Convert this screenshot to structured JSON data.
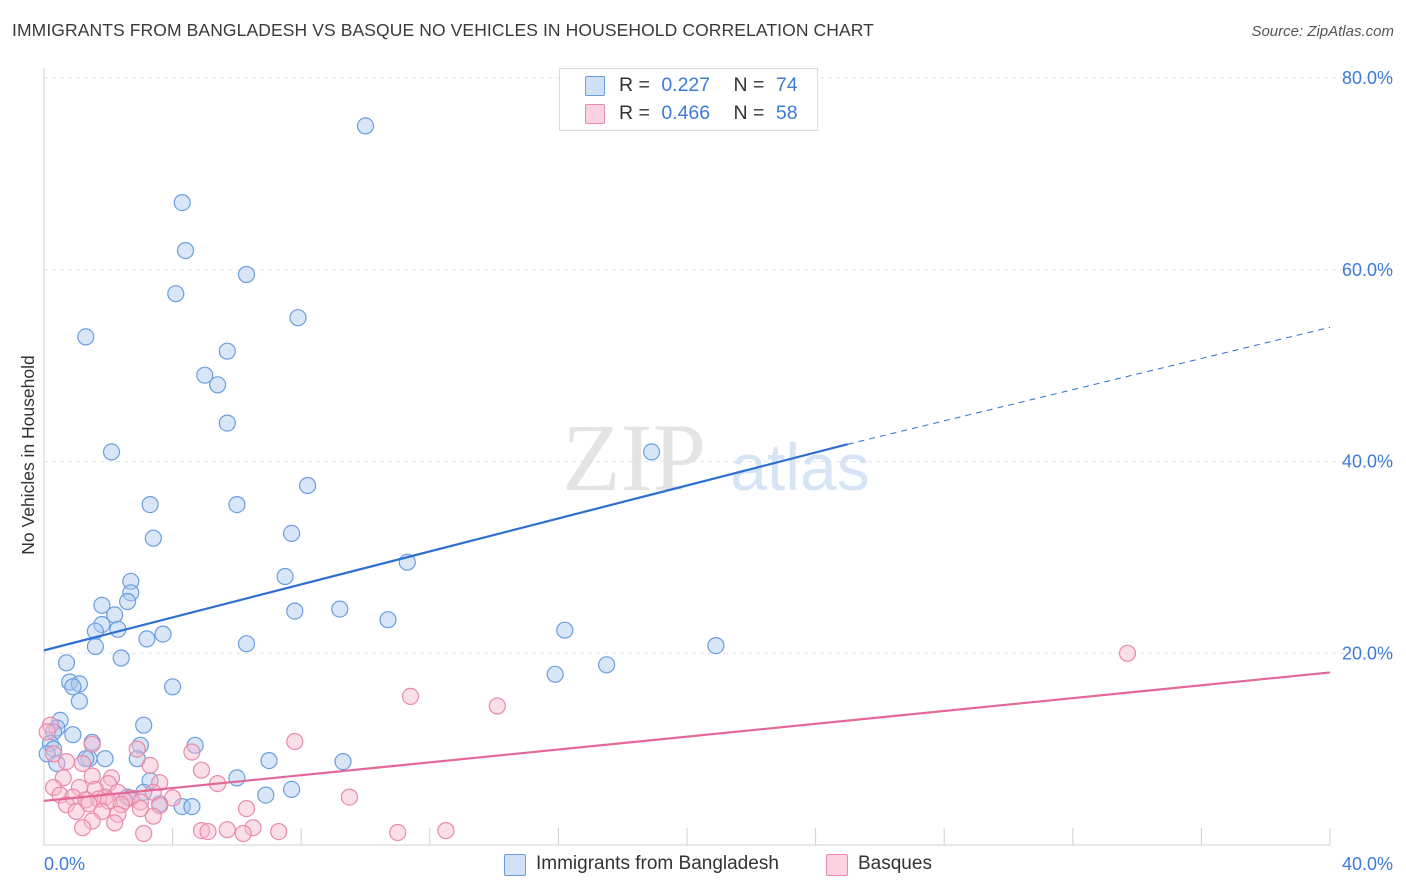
{
  "title": "IMMIGRANTS FROM BANGLADESH VS BASQUE NO VEHICLES IN HOUSEHOLD CORRELATION CHART",
  "source": "Source: ZipAtlas.com",
  "watermark": {
    "zip": "ZIP",
    "atlas": "atlas"
  },
  "legend": {
    "r_label": "R =",
    "n_label": "N =",
    "rows": [
      {
        "r": "0.227",
        "n": "74"
      },
      {
        "r": "0.466",
        "n": "58"
      }
    ]
  },
  "bottom_legend": [
    "Immigrants from Bangladesh",
    "Basques"
  ],
  "colors": {
    "blue_fill": "#a9c8f0",
    "blue_stroke": "#6a9ee0",
    "blue_line": "#2f6fcf",
    "pink_fill": "#f6b8cc",
    "pink_stroke": "#e98aa8",
    "pink_line": "#e2689a",
    "tick_label": "#3d7bd9",
    "grid": "#e4e4e4"
  },
  "chart_data": {
    "type": "scatter",
    "title": "IMMIGRANTS FROM BANGLADESH VS BASQUE NO VEHICLES IN HOUSEHOLD CORRELATION CHART",
    "xlabel": "",
    "ylabel": "No Vehicles in Household",
    "xlim": [
      0,
      40
    ],
    "ylim": [
      0,
      80
    ],
    "x_tick_labels": [
      "0.0%",
      "40.0%"
    ],
    "y_ticks": [
      20,
      40,
      60,
      80
    ],
    "y_tick_labels": [
      "20.0%",
      "40.0%",
      "60.0%",
      "80.0%"
    ],
    "grid": true,
    "legend_position": "top-center",
    "series": [
      {
        "name": "Immigrants from Bangladesh",
        "r": 0.227,
        "n": 74,
        "trend": {
          "x0": 0,
          "y0": 20.3,
          "x1": 25,
          "y1": 41.8,
          "dashed_to_x": 40,
          "dashed_to_y": 54.0
        },
        "points": [
          [
            10.0,
            75.0
          ],
          [
            4.3,
            67.0
          ],
          [
            4.4,
            62.0
          ],
          [
            6.3,
            59.5
          ],
          [
            4.1,
            57.5
          ],
          [
            7.9,
            55.0
          ],
          [
            1.3,
            53.0
          ],
          [
            5.7,
            51.5
          ],
          [
            5.0,
            49.0
          ],
          [
            5.4,
            48.0
          ],
          [
            5.7,
            44.0
          ],
          [
            2.1,
            41.0
          ],
          [
            18.9,
            41.0
          ],
          [
            8.2,
            37.5
          ],
          [
            3.3,
            35.5
          ],
          [
            6.0,
            35.5
          ],
          [
            3.4,
            32.0
          ],
          [
            7.7,
            32.5
          ],
          [
            11.3,
            29.5
          ],
          [
            2.7,
            27.5
          ],
          [
            7.5,
            28.0
          ],
          [
            2.7,
            26.3
          ],
          [
            2.6,
            25.4
          ],
          [
            1.8,
            25.0
          ],
          [
            9.2,
            24.6
          ],
          [
            7.8,
            24.4
          ],
          [
            2.2,
            24.0
          ],
          [
            1.8,
            23.0
          ],
          [
            10.7,
            23.5
          ],
          [
            1.6,
            22.3
          ],
          [
            2.3,
            22.5
          ],
          [
            3.7,
            22.0
          ],
          [
            3.2,
            21.5
          ],
          [
            6.3,
            21.0
          ],
          [
            1.6,
            20.7
          ],
          [
            2.4,
            19.5
          ],
          [
            16.2,
            22.4
          ],
          [
            20.9,
            20.8
          ],
          [
            17.5,
            18.8
          ],
          [
            15.9,
            17.8
          ],
          [
            0.7,
            19.0
          ],
          [
            0.8,
            17.0
          ],
          [
            1.1,
            16.8
          ],
          [
            0.9,
            16.5
          ],
          [
            4.0,
            16.5
          ],
          [
            1.1,
            15.0
          ],
          [
            0.5,
            13.0
          ],
          [
            0.4,
            12.2
          ],
          [
            3.1,
            12.5
          ],
          [
            0.3,
            11.8
          ],
          [
            0.9,
            11.5
          ],
          [
            0.2,
            10.6
          ],
          [
            1.5,
            10.7
          ],
          [
            0.3,
            10.0
          ],
          [
            3.0,
            10.4
          ],
          [
            4.7,
            10.4
          ],
          [
            0.1,
            9.5
          ],
          [
            1.4,
            9.0
          ],
          [
            1.3,
            9.0
          ],
          [
            1.9,
            9.0
          ],
          [
            2.9,
            9.0
          ],
          [
            7.0,
            8.8
          ],
          [
            9.3,
            8.7
          ],
          [
            0.4,
            8.5
          ],
          [
            6.0,
            7.0
          ],
          [
            3.3,
            6.7
          ],
          [
            7.7,
            5.8
          ],
          [
            6.9,
            5.2
          ],
          [
            2.6,
            5.0
          ],
          [
            2.7,
            4.9
          ],
          [
            3.6,
            4.3
          ],
          [
            4.3,
            4.0
          ],
          [
            4.6,
            4.0
          ],
          [
            3.1,
            5.5
          ]
        ]
      },
      {
        "name": "Basques",
        "r": 0.466,
        "n": 58,
        "trend": {
          "x0": 0,
          "y0": 4.6,
          "x1": 40,
          "y1": 18.0
        },
        "points": [
          [
            33.7,
            20.0
          ],
          [
            11.4,
            15.5
          ],
          [
            14.1,
            14.5
          ],
          [
            0.2,
            12.5
          ],
          [
            0.1,
            11.8
          ],
          [
            1.5,
            10.5
          ],
          [
            7.8,
            10.8
          ],
          [
            0.3,
            9.5
          ],
          [
            2.9,
            10.0
          ],
          [
            4.6,
            9.7
          ],
          [
            0.7,
            8.7
          ],
          [
            1.2,
            8.5
          ],
          [
            3.3,
            8.3
          ],
          [
            4.9,
            7.8
          ],
          [
            1.5,
            7.2
          ],
          [
            0.6,
            7.0
          ],
          [
            2.1,
            7.0
          ],
          [
            2.0,
            6.4
          ],
          [
            3.6,
            6.5
          ],
          [
            5.4,
            6.4
          ],
          [
            0.3,
            6.0
          ],
          [
            1.1,
            6.0
          ],
          [
            1.6,
            5.8
          ],
          [
            2.3,
            5.5
          ],
          [
            3.4,
            5.5
          ],
          [
            0.5,
            5.2
          ],
          [
            0.9,
            5.0
          ],
          [
            1.9,
            5.0
          ],
          [
            2.7,
            4.9
          ],
          [
            4.0,
            4.9
          ],
          [
            9.5,
            5.0
          ],
          [
            1.3,
            4.7
          ],
          [
            1.7,
            4.8
          ],
          [
            2.0,
            4.6
          ],
          [
            2.5,
            4.6
          ],
          [
            3.0,
            4.5
          ],
          [
            0.7,
            4.2
          ],
          [
            1.4,
            4.3
          ],
          [
            2.4,
            4.2
          ],
          [
            3.6,
            4.1
          ],
          [
            6.3,
            3.8
          ],
          [
            1.0,
            3.5
          ],
          [
            1.8,
            3.5
          ],
          [
            3.0,
            3.8
          ],
          [
            2.3,
            3.2
          ],
          [
            3.4,
            3.0
          ],
          [
            1.5,
            2.5
          ],
          [
            2.2,
            2.3
          ],
          [
            5.7,
            1.6
          ],
          [
            6.5,
            1.8
          ],
          [
            1.2,
            1.8
          ],
          [
            4.9,
            1.5
          ],
          [
            5.1,
            1.4
          ],
          [
            6.2,
            1.2
          ],
          [
            7.3,
            1.4
          ],
          [
            3.1,
            1.2
          ],
          [
            11.0,
            1.3
          ],
          [
            12.5,
            1.5
          ]
        ]
      }
    ]
  }
}
